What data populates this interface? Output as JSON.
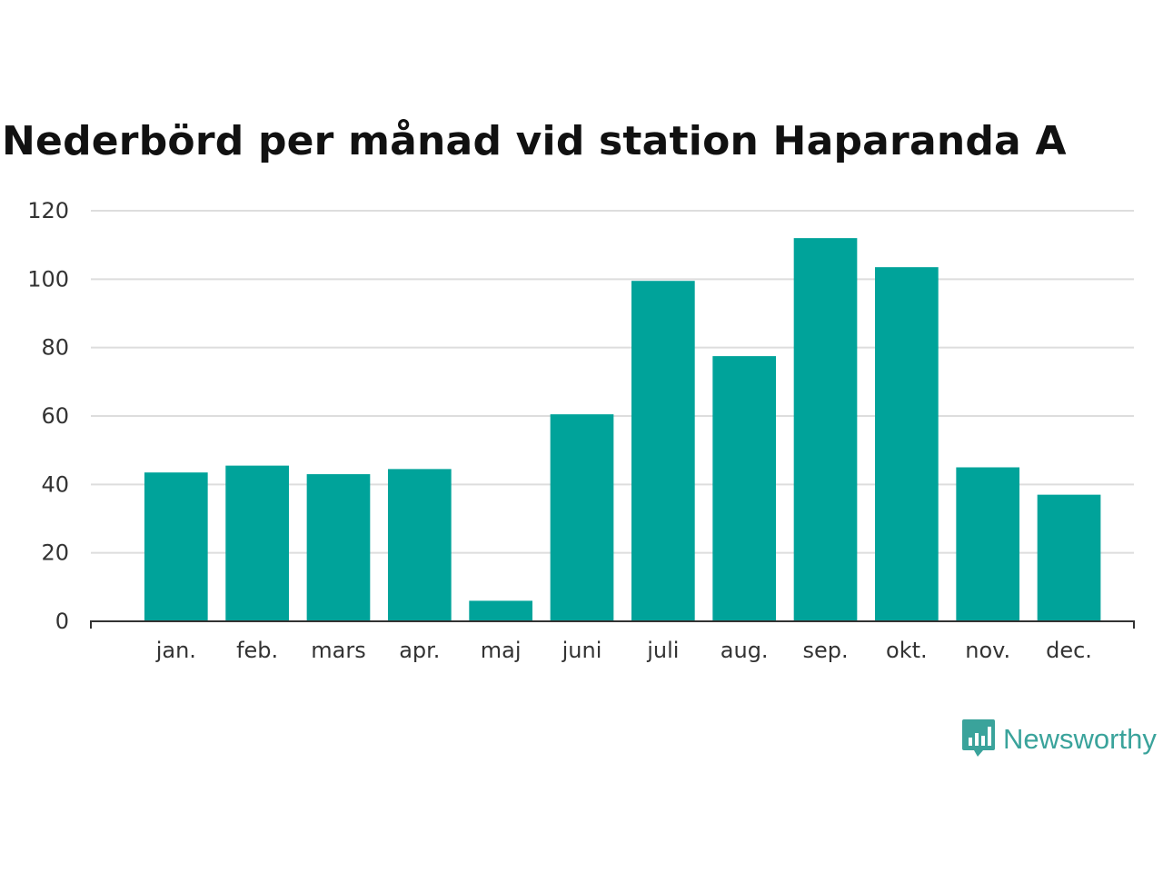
{
  "chart_data": {
    "type": "bar",
    "title": "Nederbörd per månad vid station Haparanda A",
    "categories": [
      "jan.",
      "feb.",
      "mars",
      "apr.",
      "maj",
      "juni",
      "juli",
      "aug.",
      "sep.",
      "okt.",
      "nov.",
      "dec."
    ],
    "values": [
      43.5,
      45.5,
      43,
      44.5,
      6,
      60.5,
      99.5,
      77.5,
      112,
      103.5,
      45,
      37
    ],
    "xlabel": "",
    "ylabel": "",
    "ylim": [
      0,
      120
    ],
    "yticks": [
      "0",
      "20",
      "40",
      "60",
      "80",
      "100",
      "120"
    ],
    "grid": true,
    "bar_color": "#00a39a"
  },
  "brand": {
    "name": "Newsworthy",
    "icon": "newsworthy-logo-icon",
    "color": "#3aa39b"
  }
}
